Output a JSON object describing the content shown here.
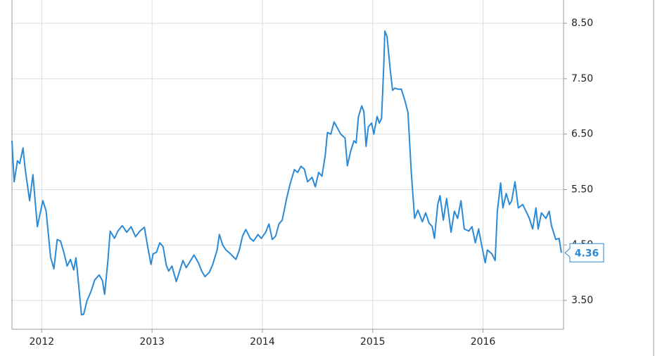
{
  "chart_data": {
    "type": "line",
    "color": "#2a8ad8",
    "grid": true,
    "xlim": [
      2011.73,
      2016.73
    ],
    "xticks": [
      2012,
      2013,
      2014,
      2015,
      2016
    ],
    "ylim": [
      2.98,
      8.92
    ],
    "yticks": [
      {
        "value": 3.5,
        "label": "3.50"
      },
      {
        "value": 4.5,
        "label": "4.50"
      },
      {
        "value": 5.5,
        "label": "5.50"
      },
      {
        "value": 6.5,
        "label": "6.50"
      },
      {
        "value": 7.5,
        "label": "7.50"
      },
      {
        "value": 8.5,
        "label": "8.50"
      }
    ],
    "x": [
      2011.73,
      2011.75,
      2011.78,
      2011.8,
      2011.83,
      2011.85,
      2011.89,
      2011.92,
      2011.96,
      2012.01,
      2012.04,
      2012.08,
      2012.11,
      2012.14,
      2012.17,
      2012.2,
      2012.23,
      2012.26,
      2012.29,
      2012.31,
      2012.32,
      2012.36,
      2012.38,
      2012.41,
      2012.45,
      2012.48,
      2012.52,
      2012.55,
      2012.57,
      2012.6,
      2012.62,
      2012.66,
      2012.69,
      2012.73,
      2012.77,
      2012.81,
      2012.85,
      2012.89,
      2012.93,
      2012.96,
      2012.99,
      2013.01,
      2013.04,
      2013.07,
      2013.1,
      2013.13,
      2013.15,
      2013.18,
      2013.22,
      2013.25,
      2013.28,
      2013.31,
      2013.35,
      2013.38,
      2013.42,
      2013.45,
      2013.48,
      2013.52,
      2013.55,
      2013.59,
      2013.61,
      2013.64,
      2013.67,
      2013.71,
      2013.76,
      2013.79,
      2013.82,
      2013.85,
      2013.89,
      2013.92,
      2013.96,
      2013.99,
      2014.03,
      2014.06,
      2014.09,
      2014.12,
      2014.15,
      2014.18,
      2014.22,
      2014.25,
      2014.29,
      2014.32,
      2014.35,
      2014.38,
      2014.41,
      2014.45,
      2014.48,
      2014.51,
      2014.54,
      2014.57,
      2014.59,
      2014.62,
      2014.65,
      2014.68,
      2014.71,
      2014.75,
      2014.77,
      2014.8,
      2014.83,
      2014.85,
      2014.87,
      2014.9,
      2014.92,
      2014.94,
      2014.96,
      2014.99,
      2015.01,
      2015.04,
      2015.06,
      2015.08,
      2015.1,
      2015.11,
      2015.13,
      2015.16,
      2015.18,
      2015.2,
      2015.23,
      2015.26,
      2015.29,
      2015.32,
      2015.35,
      2015.38,
      2015.41,
      2015.45,
      2015.48,
      2015.51,
      2015.54,
      2015.56,
      2015.59,
      2015.61,
      2015.64,
      2015.67,
      2015.71,
      2015.74,
      2015.77,
      2015.8,
      2015.83,
      2015.87,
      2015.9,
      2015.93,
      2015.96,
      2015.99,
      2016.02,
      2016.04,
      2016.08,
      2016.11,
      2016.13,
      2016.16,
      2016.18,
      2016.21,
      2016.24,
      2016.26,
      2016.29,
      2016.32,
      2016.36,
      2016.39,
      2016.42,
      2016.45,
      2016.48,
      2016.5,
      2016.53,
      2016.57,
      2016.6,
      2016.62,
      2016.66,
      2016.69,
      2016.71
    ],
    "values": [
      6.38,
      5.64,
      6.02,
      5.97,
      6.25,
      5.87,
      5.3,
      5.77,
      4.83,
      5.3,
      5.11,
      4.28,
      4.07,
      4.6,
      4.57,
      4.37,
      4.12,
      4.24,
      4.05,
      4.27,
      4.09,
      3.24,
      3.25,
      3.49,
      3.68,
      3.87,
      3.96,
      3.86,
      3.61,
      4.22,
      4.75,
      4.62,
      4.75,
      4.85,
      4.73,
      4.83,
      4.65,
      4.75,
      4.82,
      4.47,
      4.15,
      4.34,
      4.37,
      4.54,
      4.47,
      4.13,
      4.03,
      4.12,
      3.84,
      4.03,
      4.22,
      4.09,
      4.22,
      4.32,
      4.18,
      4.03,
      3.93,
      4.01,
      4.15,
      4.41,
      4.69,
      4.5,
      4.41,
      4.34,
      4.24,
      4.4,
      4.66,
      4.78,
      4.62,
      4.57,
      4.69,
      4.62,
      4.73,
      4.88,
      4.6,
      4.66,
      4.88,
      4.95,
      5.34,
      5.59,
      5.86,
      5.81,
      5.92,
      5.87,
      5.64,
      5.72,
      5.55,
      5.81,
      5.74,
      6.12,
      6.53,
      6.5,
      6.72,
      6.61,
      6.5,
      6.43,
      5.93,
      6.19,
      6.38,
      6.34,
      6.81,
      7.01,
      6.91,
      6.28,
      6.63,
      6.7,
      6.5,
      6.82,
      6.7,
      6.78,
      7.71,
      8.36,
      8.26,
      7.65,
      7.29,
      7.33,
      7.31,
      7.31,
      7.12,
      6.89,
      5.81,
      4.98,
      5.13,
      4.92,
      5.08,
      4.9,
      4.83,
      4.62,
      5.23,
      5.39,
      4.95,
      5.34,
      4.73,
      5.11,
      4.98,
      5.3,
      4.79,
      4.75,
      4.83,
      4.54,
      4.79,
      4.47,
      4.18,
      4.41,
      4.34,
      4.22,
      5.11,
      5.62,
      5.17,
      5.43,
      5.23,
      5.3,
      5.64,
      5.17,
      5.23,
      5.11,
      4.98,
      4.79,
      5.17,
      4.79,
      5.08,
      4.98,
      5.11,
      4.85,
      4.6,
      4.62,
      4.36
    ]
  }
}
